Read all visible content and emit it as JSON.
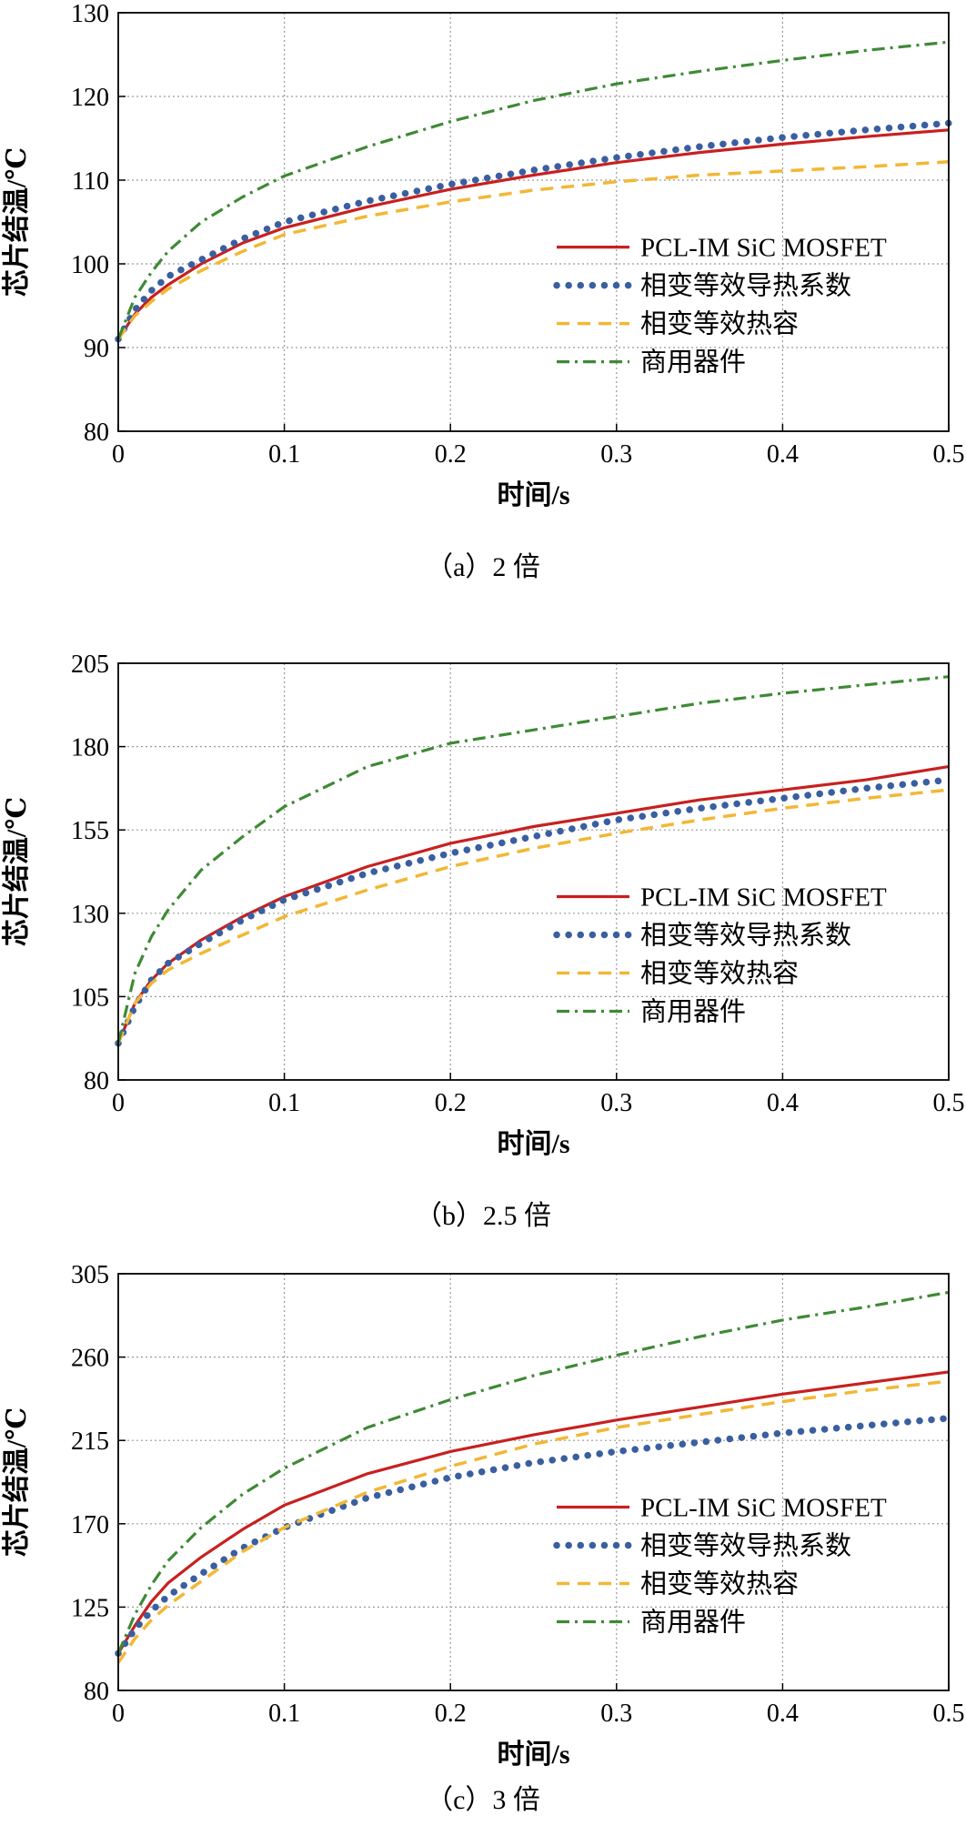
{
  "figure": {
    "panels": [
      {
        "caption": "（a）2 倍"
      },
      {
        "caption": "（b）2.5 倍"
      },
      {
        "caption": "（c）3 倍"
      }
    ]
  },
  "colors": {
    "pcl": "#c8201f",
    "phase_k": "#3a5fa0",
    "phase_c": "#f2b735",
    "commercial": "#3e8a35",
    "grid": "#9a9a9a"
  },
  "chart_data": [
    {
      "type": "line",
      "xlabel": "时间/s",
      "ylabel": "芯片结温/℃",
      "xlim": [
        0,
        0.5
      ],
      "ylim": [
        80,
        130
      ],
      "xticks": [
        "0",
        "0.1",
        "0.2",
        "0.3",
        "0.4",
        "0.5"
      ],
      "yticks": [
        "80",
        "90",
        "100",
        "110",
        "120",
        "130"
      ],
      "grid": true,
      "legend_position": "right",
      "series": [
        {
          "name": "PCL-IM SiC MOSFET",
          "style": "solid",
          "x": [
            0,
            0.01,
            0.02,
            0.03,
            0.05,
            0.075,
            0.1,
            0.15,
            0.2,
            0.25,
            0.3,
            0.35,
            0.4,
            0.45,
            0.5
          ],
          "y": [
            91,
            94,
            96,
            97.5,
            100,
            102.5,
            104.3,
            106.8,
            108.9,
            110.6,
            112.1,
            113.3,
            114.3,
            115.2,
            116
          ]
        },
        {
          "name": "相变等效导热系数",
          "style": "dotted",
          "x": [
            0,
            0.01,
            0.02,
            0.03,
            0.05,
            0.075,
            0.1,
            0.15,
            0.2,
            0.25,
            0.3,
            0.35,
            0.4,
            0.45,
            0.5
          ],
          "y": [
            91,
            94.5,
            96.8,
            98.5,
            100.5,
            103,
            105,
            107.5,
            109.5,
            111.2,
            112.7,
            114,
            115.1,
            116,
            116.8
          ]
        },
        {
          "name": "相变等效热容",
          "style": "dashed",
          "x": [
            0,
            0.01,
            0.02,
            0.03,
            0.05,
            0.075,
            0.1,
            0.15,
            0.2,
            0.25,
            0.3,
            0.35,
            0.4,
            0.45,
            0.5
          ],
          "y": [
            91,
            93.8,
            95.5,
            97,
            99.2,
            101.5,
            103.5,
            105.7,
            107.4,
            108.8,
            109.8,
            110.6,
            111.1,
            111.6,
            112.2
          ]
        },
        {
          "name": "商用器件",
          "style": "dashdot",
          "x": [
            0,
            0.01,
            0.02,
            0.03,
            0.05,
            0.075,
            0.1,
            0.15,
            0.2,
            0.25,
            0.3,
            0.35,
            0.4,
            0.45,
            0.5
          ],
          "y": [
            91,
            96,
            99,
            101.5,
            105,
            108,
            110.5,
            114,
            117,
            119.5,
            121.5,
            123,
            124.3,
            125.5,
            126.5
          ]
        }
      ]
    },
    {
      "type": "line",
      "xlabel": "时间/s",
      "ylabel": "芯片结温/℃",
      "xlim": [
        0,
        0.5
      ],
      "ylim": [
        80,
        205
      ],
      "xticks": [
        "0",
        "0.1",
        "0.2",
        "0.3",
        "0.4",
        "0.5"
      ],
      "yticks": [
        "80",
        "105",
        "130",
        "155",
        "180",
        "205"
      ],
      "grid": true,
      "legend_position": "right",
      "series": [
        {
          "name": "PCL-IM SiC MOSFET",
          "style": "solid",
          "x": [
            0,
            0.01,
            0.02,
            0.03,
            0.05,
            0.075,
            0.1,
            0.15,
            0.2,
            0.25,
            0.3,
            0.35,
            0.4,
            0.45,
            0.5
          ],
          "y": [
            91,
            103,
            110,
            115,
            122,
            129,
            135,
            144,
            151,
            156,
            160,
            164,
            167,
            170,
            174
          ]
        },
        {
          "name": "相变等效导热系数",
          "style": "dotted",
          "x": [
            0,
            0.01,
            0.02,
            0.03,
            0.05,
            0.075,
            0.1,
            0.15,
            0.2,
            0.25,
            0.3,
            0.35,
            0.4,
            0.45,
            0.5
          ],
          "y": [
            91,
            102,
            110,
            115,
            121,
            128,
            134,
            142,
            148,
            153,
            158,
            161.5,
            164.5,
            167.5,
            170
          ]
        },
        {
          "name": "相变等效热容",
          "style": "dashed",
          "x": [
            0,
            0.01,
            0.02,
            0.03,
            0.05,
            0.075,
            0.1,
            0.15,
            0.2,
            0.25,
            0.3,
            0.35,
            0.4,
            0.45,
            0.5
          ],
          "y": [
            91,
            103,
            109,
            113,
            118,
            123.5,
            129,
            137,
            144,
            149.5,
            154,
            158,
            161.5,
            164.5,
            167
          ]
        },
        {
          "name": "商用器件",
          "style": "dashdot",
          "x": [
            0,
            0.01,
            0.02,
            0.03,
            0.05,
            0.075,
            0.1,
            0.15,
            0.2,
            0.25,
            0.3,
            0.35,
            0.4,
            0.45,
            0.5
          ],
          "y": [
            91,
            112,
            123,
            131,
            143,
            153,
            162,
            174,
            181,
            185,
            189,
            193,
            196,
            198.5,
            201
          ]
        }
      ]
    },
    {
      "type": "line",
      "xlabel": "时间/s",
      "ylabel": "芯片结温/℃",
      "xlim": [
        0,
        0.5
      ],
      "ylim": [
        80,
        305
      ],
      "xticks": [
        "0",
        "0.1",
        "0.2",
        "0.3",
        "0.4",
        "0.5"
      ],
      "yticks": [
        "80",
        "125",
        "170",
        "215",
        "260",
        "305"
      ],
      "grid": true,
      "legend_position": "right",
      "series": [
        {
          "name": "PCL-IM SiC MOSFET",
          "style": "solid",
          "x": [
            0,
            0.01,
            0.02,
            0.03,
            0.05,
            0.075,
            0.1,
            0.15,
            0.2,
            0.25,
            0.3,
            0.35,
            0.4,
            0.45,
            0.5
          ],
          "y": [
            100,
            115,
            128,
            138,
            152,
            167,
            180,
            197,
            209,
            218,
            226,
            233,
            240,
            246,
            252
          ]
        },
        {
          "name": "相变等效导热系数",
          "style": "dotted",
          "x": [
            0,
            0.01,
            0.02,
            0.03,
            0.05,
            0.075,
            0.1,
            0.15,
            0.2,
            0.25,
            0.3,
            0.35,
            0.4,
            0.45,
            0.5
          ],
          "y": [
            100,
            113,
            123,
            131,
            143,
            157,
            168,
            184,
            195,
            203,
            209,
            214,
            219,
            223,
            227
          ]
        },
        {
          "name": "相变等效热容",
          "style": "dashed",
          "x": [
            0,
            0.01,
            0.02,
            0.03,
            0.05,
            0.075,
            0.1,
            0.15,
            0.2,
            0.25,
            0.3,
            0.35,
            0.4,
            0.45,
            0.5
          ],
          "y": [
            95,
            108,
            118,
            126,
            139,
            155,
            168,
            187,
            201,
            213,
            222,
            229,
            236,
            242,
            247
          ]
        },
        {
          "name": "商用器件",
          "style": "dashdot",
          "x": [
            0,
            0.01,
            0.02,
            0.03,
            0.05,
            0.075,
            0.1,
            0.15,
            0.2,
            0.25,
            0.3,
            0.35,
            0.4,
            0.45,
            0.5
          ],
          "y": [
            100,
            121,
            137,
            150,
            168,
            186,
            200,
            222,
            237,
            250,
            261,
            271,
            280,
            287,
            295
          ]
        }
      ]
    }
  ]
}
